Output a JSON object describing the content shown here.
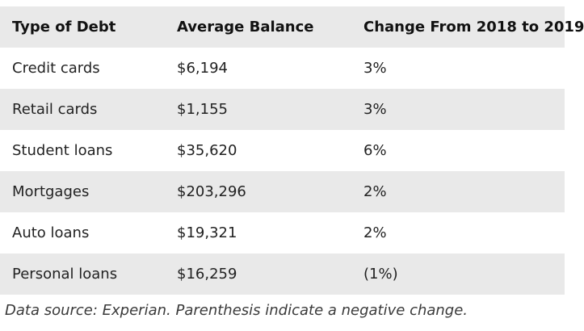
{
  "table": {
    "headers": [
      "Type of Debt",
      "Average Balance",
      "Change From 2018 to 2019"
    ],
    "rows": [
      [
        "Credit cards",
        "$6,194",
        "3%"
      ],
      [
        "Retail cards",
        "$1,155",
        "3%"
      ],
      [
        "Student loans",
        "$35,620",
        "6%"
      ],
      [
        "Mortgages",
        "$203,296",
        "2%"
      ],
      [
        "Auto loans",
        "$19,321",
        "2%"
      ],
      [
        "Personal loans",
        "$16,259",
        "(1%)"
      ]
    ]
  },
  "caption": "Data source: Experian. Parenthesis indicate a negative change.",
  "colors": {
    "shaded_row": "#e9e9e9",
    "plain_row": "#ffffff",
    "text": "#1a1a1a"
  }
}
